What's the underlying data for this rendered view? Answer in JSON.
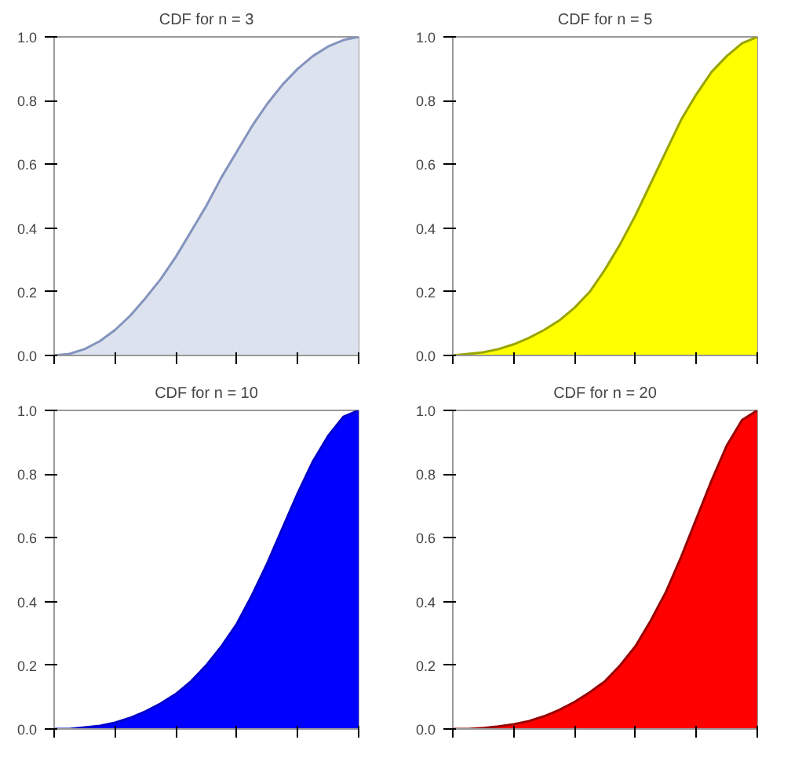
{
  "chart_data": [
    {
      "type": "area",
      "title": "CDF for n = 3",
      "categories": [
        null,
        null,
        null,
        null,
        null,
        null,
        null,
        null,
        null,
        null,
        null,
        null,
        null,
        null,
        null,
        null,
        null,
        null,
        null,
        null,
        null
      ],
      "ylim": [
        0,
        1
      ],
      "yticks": [
        {
          "value": 0,
          "label": "0.0"
        },
        {
          "value": 0.2,
          "label": "0.2"
        },
        {
          "value": 0.4,
          "label": "0.4"
        },
        {
          "value": 0.6,
          "label": "0.6"
        },
        {
          "value": 0.8,
          "label": "0.8"
        },
        {
          "value": 1,
          "label": "1.0"
        }
      ],
      "tick_labels": "y",
      "grid": false,
      "series": [
        {
          "color": "#dde3ee",
          "values": [
            0,
            0.005,
            0.02,
            0.045,
            0.08,
            0.125,
            0.18,
            0.24,
            0.31,
            0.39,
            0.47,
            0.56,
            0.64,
            0.72,
            0.79,
            0.85,
            0.9,
            0.94,
            0.97,
            0.99,
            1.0
          ]
        }
      ]
    },
    {
      "type": "area",
      "title": "CDF for n = 5",
      "categories": [
        null,
        null,
        null,
        null,
        null,
        null,
        null,
        null,
        null,
        null,
        null,
        null,
        null,
        null,
        null,
        null,
        null,
        null,
        null,
        null,
        null
      ],
      "ylim": [
        0,
        1
      ],
      "yticks": [
        {
          "value": 0,
          "label": "0.0"
        },
        {
          "value": 0.2,
          "label": "0.2"
        },
        {
          "value": 0.4,
          "label": "0.4"
        },
        {
          "value": 0.6,
          "label": "0.6"
        },
        {
          "value": 0.8,
          "label": "0.8"
        },
        {
          "value": 1,
          "label": "1.0"
        }
      ],
      "tick_labels": "y",
      "grid": false,
      "series": [
        {
          "color": "#ffff00",
          "values": [
            0,
            0.005,
            0.01,
            0.02,
            0.035,
            0.055,
            0.08,
            0.11,
            0.15,
            0.2,
            0.27,
            0.35,
            0.44,
            0.54,
            0.64,
            0.74,
            0.82,
            0.89,
            0.94,
            0.98,
            1.0
          ]
        }
      ]
    },
    {
      "type": "area",
      "title": "CDF for n = 10",
      "categories": [
        null,
        null,
        null,
        null,
        null,
        null,
        null,
        null,
        null,
        null,
        null,
        null,
        null,
        null,
        null,
        null,
        null,
        null,
        null,
        null,
        null
      ],
      "ylim": [
        0,
        1
      ],
      "yticks": [
        {
          "value": 0,
          "label": "0.0"
        },
        {
          "value": 0.2,
          "label": "0.2"
        },
        {
          "value": 0.4,
          "label": "0.4"
        },
        {
          "value": 0.6,
          "label": "0.6"
        },
        {
          "value": 0.8,
          "label": "0.8"
        },
        {
          "value": 1,
          "label": "1.0"
        }
      ],
      "tick_labels": "y",
      "grid": false,
      "series": [
        {
          "color": "#0000ff",
          "values": [
            0,
            0,
            0.005,
            0.01,
            0.02,
            0.035,
            0.055,
            0.08,
            0.11,
            0.15,
            0.2,
            0.26,
            0.33,
            0.42,
            0.52,
            0.63,
            0.74,
            0.84,
            0.92,
            0.98,
            1.0
          ]
        }
      ]
    },
    {
      "type": "area",
      "title": "CDF for n = 20",
      "categories": [
        null,
        null,
        null,
        null,
        null,
        null,
        null,
        null,
        null,
        null,
        null,
        null,
        null,
        null,
        null,
        null,
        null,
        null,
        null,
        null,
        null
      ],
      "ylim": [
        0,
        1
      ],
      "yticks": [
        {
          "value": 0,
          "label": "0.0"
        },
        {
          "value": 0.2,
          "label": "0.2"
        },
        {
          "value": 0.4,
          "label": "0.4"
        },
        {
          "value": 0.6,
          "label": "0.6"
        },
        {
          "value": 0.8,
          "label": "0.8"
        },
        {
          "value": 1,
          "label": "1.0"
        }
      ],
      "tick_labels": "y",
      "grid": false,
      "series": [
        {
          "color": "#ff0000",
          "values": [
            0,
            0,
            0.003,
            0.008,
            0.015,
            0.025,
            0.04,
            0.06,
            0.085,
            0.115,
            0.15,
            0.2,
            0.26,
            0.34,
            0.43,
            0.54,
            0.66,
            0.78,
            0.89,
            0.97,
            1.0
          ]
        }
      ]
    }
  ]
}
